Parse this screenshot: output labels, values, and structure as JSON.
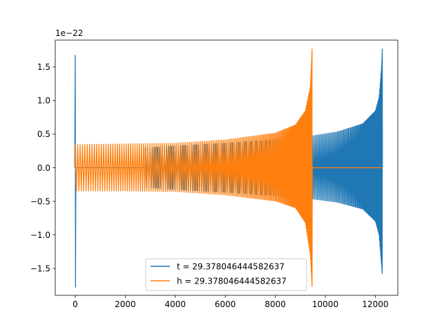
{
  "chart_data": {
    "type": "line",
    "title": "",
    "xlabel": "",
    "ylabel": "",
    "offset_text": "1e−22",
    "xlim": [
      -800,
      12900
    ],
    "ylim": [
      -1.9,
      1.9
    ],
    "x_ticks": [
      0,
      2000,
      4000,
      6000,
      8000,
      10000,
      12000
    ],
    "x_tick_labels": [
      "0",
      "2000",
      "4000",
      "6000",
      "8000",
      "10000",
      "12000"
    ],
    "y_ticks": [
      -1.5,
      -1.0,
      -0.5,
      0.0,
      0.5,
      1.0,
      1.5
    ],
    "y_tick_labels": [
      "−1.5",
      "−1.0",
      "−0.5",
      "0.0",
      "0.5",
      "1.0",
      "1.5"
    ],
    "grid": false,
    "legend_position": "lower center",
    "series": [
      {
        "name": "t = 29.378046444582637",
        "color": "#1f77b4",
        "style": "chirp",
        "spike_x": 0,
        "spike_range": [
          -1.78,
          1.68
        ],
        "zero_until_x": 2800,
        "oscillation_start_x": 2800,
        "merger_x": 12280,
        "envelope_x": [
          2800,
          4000,
          6000,
          8000,
          9500,
          10500,
          11500,
          12000,
          12150,
          12250,
          12280
        ],
        "envelope_upper": [
          0.3,
          0.33,
          0.37,
          0.42,
          0.48,
          0.54,
          0.66,
          0.85,
          1.05,
          1.5,
          1.77
        ],
        "envelope_lower": [
          -0.3,
          -0.33,
          -0.37,
          -0.42,
          -0.47,
          -0.52,
          -0.62,
          -0.8,
          -1.0,
          -1.45,
          -1.6
        ]
      },
      {
        "name": "h = 29.378046444582637",
        "color": "#ff7f0e",
        "style": "chirp",
        "oscillation_start_x": 0,
        "merger_x": 9470,
        "flat_after_x": 9470,
        "envelope_x": [
          0,
          2000,
          4000,
          6000,
          8000,
          8800,
          9200,
          9400,
          9470
        ],
        "envelope_upper": [
          0.35,
          0.36,
          0.37,
          0.42,
          0.52,
          0.64,
          0.85,
          1.2,
          1.77
        ],
        "envelope_lower": [
          -0.35,
          -0.35,
          -0.36,
          -0.41,
          -0.5,
          -0.6,
          -0.82,
          -1.3,
          -1.77
        ]
      }
    ]
  }
}
